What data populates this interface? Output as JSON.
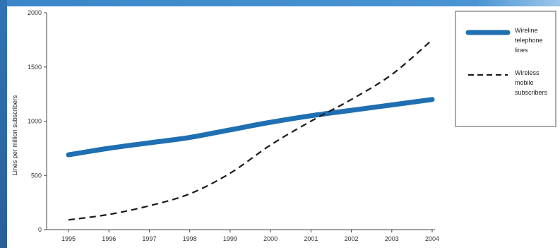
{
  "chart_data": {
    "type": "line",
    "xlabel": "",
    "ylabel": "Lines per million subscribers",
    "x": [
      1995,
      1996,
      1997,
      1998,
      1999,
      2000,
      2001,
      2002,
      2003,
      2004
    ],
    "x_tick_labels": [
      "1995",
      "1996",
      "1997",
      "1998",
      "1999",
      "2000",
      "2001",
      "2002",
      "2003",
      "2004"
    ],
    "ylim": [
      0,
      2000
    ],
    "y_ticks": [
      0,
      500,
      1000,
      1500,
      2000
    ],
    "y_tick_labels": [
      "0",
      "500",
      "1000",
      "1500",
      "2000"
    ],
    "grid": false,
    "legend_position": "right",
    "series": [
      {
        "name": "Wireline telephone lines",
        "label_lines": [
          "Wireline",
          "telephone",
          "lines"
        ],
        "style": "solid-thick",
        "color": "#1f6fb2",
        "values": [
          690,
          750,
          800,
          850,
          920,
          990,
          1050,
          1100,
          1150,
          1200
        ]
      },
      {
        "name": "Wireless mobile subscribers",
        "label_lines": [
          "Wireless",
          "mobile",
          "subscribers"
        ],
        "style": "dashed",
        "color": "#1a1a1a",
        "values": [
          90,
          140,
          220,
          330,
          520,
          780,
          1000,
          1200,
          1430,
          1750
        ]
      }
    ]
  }
}
